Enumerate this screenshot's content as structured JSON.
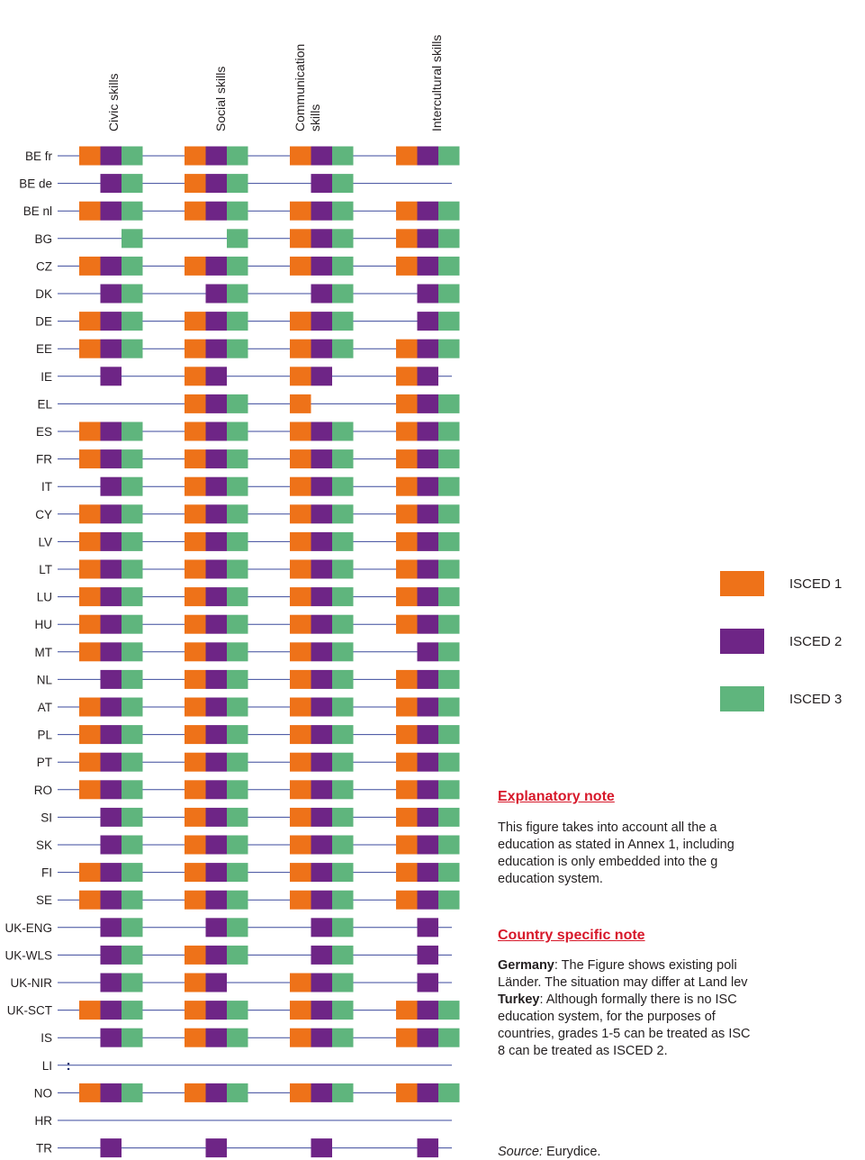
{
  "chart_data": {
    "type": "table",
    "categories": [
      "Civic skills",
      "Social skills",
      "Communication skills",
      "Intercultural skills"
    ],
    "column_headers": [
      [
        "Civic skills"
      ],
      [
        "Social skills"
      ],
      [
        "Communication",
        "skills"
      ],
      [
        "Intercultural skills"
      ]
    ],
    "series": [
      {
        "name": "ISCED 1",
        "color": "#ee7219"
      },
      {
        "name": "ISCED 2",
        "color": "#6e2586"
      },
      {
        "name": "ISCED 3",
        "color": "#5fb57d"
      }
    ],
    "missing_symbol": ":",
    "rows": [
      {
        "country": "BE fr",
        "values": [
          [
            1,
            2,
            3
          ],
          [
            1,
            2,
            3
          ],
          [
            1,
            2,
            3
          ],
          [
            1,
            2,
            3
          ]
        ]
      },
      {
        "country": "BE de",
        "values": [
          [
            2,
            3
          ],
          [
            1,
            2,
            3
          ],
          [
            2,
            3
          ],
          []
        ]
      },
      {
        "country": "BE nl",
        "values": [
          [
            1,
            2,
            3
          ],
          [
            1,
            2,
            3
          ],
          [
            1,
            2,
            3
          ],
          [
            1,
            2,
            3
          ]
        ]
      },
      {
        "country": "BG",
        "values": [
          [
            3
          ],
          [
            3
          ],
          [
            1,
            2,
            3
          ],
          [
            1,
            2,
            3
          ]
        ]
      },
      {
        "country": "CZ",
        "values": [
          [
            1,
            2,
            3
          ],
          [
            1,
            2,
            3
          ],
          [
            1,
            2,
            3
          ],
          [
            1,
            2,
            3
          ]
        ]
      },
      {
        "country": "DK",
        "values": [
          [
            2,
            3
          ],
          [
            2,
            3
          ],
          [
            2,
            3
          ],
          [
            2,
            3
          ]
        ]
      },
      {
        "country": "DE",
        "values": [
          [
            1,
            2,
            3
          ],
          [
            1,
            2,
            3
          ],
          [
            1,
            2,
            3
          ],
          [
            2,
            3
          ]
        ]
      },
      {
        "country": "EE",
        "values": [
          [
            1,
            2,
            3
          ],
          [
            1,
            2,
            3
          ],
          [
            1,
            2,
            3
          ],
          [
            1,
            2,
            3
          ]
        ]
      },
      {
        "country": "IE",
        "values": [
          [
            2
          ],
          [
            1,
            2
          ],
          [
            1,
            2
          ],
          [
            1,
            2
          ]
        ]
      },
      {
        "country": "EL",
        "values": [
          [],
          [
            1,
            2,
            3
          ],
          [
            1
          ],
          [
            1,
            2,
            3
          ]
        ]
      },
      {
        "country": "ES",
        "values": [
          [
            1,
            2,
            3
          ],
          [
            1,
            2,
            3
          ],
          [
            1,
            2,
            3
          ],
          [
            1,
            2,
            3
          ]
        ]
      },
      {
        "country": "FR",
        "values": [
          [
            1,
            2,
            3
          ],
          [
            1,
            2,
            3
          ],
          [
            1,
            2,
            3
          ],
          [
            1,
            2,
            3
          ]
        ]
      },
      {
        "country": "IT",
        "values": [
          [
            2,
            3
          ],
          [
            1,
            2,
            3
          ],
          [
            1,
            2,
            3
          ],
          [
            1,
            2,
            3
          ]
        ]
      },
      {
        "country": "CY",
        "values": [
          [
            1,
            2,
            3
          ],
          [
            1,
            2,
            3
          ],
          [
            1,
            2,
            3
          ],
          [
            1,
            2,
            3
          ]
        ]
      },
      {
        "country": "LV",
        "values": [
          [
            1,
            2,
            3
          ],
          [
            1,
            2,
            3
          ],
          [
            1,
            2,
            3
          ],
          [
            1,
            2,
            3
          ]
        ]
      },
      {
        "country": "LT",
        "values": [
          [
            1,
            2,
            3
          ],
          [
            1,
            2,
            3
          ],
          [
            1,
            2,
            3
          ],
          [
            1,
            2,
            3
          ]
        ]
      },
      {
        "country": "LU",
        "values": [
          [
            1,
            2,
            3
          ],
          [
            1,
            2,
            3
          ],
          [
            1,
            2,
            3
          ],
          [
            1,
            2,
            3
          ]
        ]
      },
      {
        "country": "HU",
        "values": [
          [
            1,
            2,
            3
          ],
          [
            1,
            2,
            3
          ],
          [
            1,
            2,
            3
          ],
          [
            1,
            2,
            3
          ]
        ]
      },
      {
        "country": "MT",
        "values": [
          [
            1,
            2,
            3
          ],
          [
            1,
            2,
            3
          ],
          [
            1,
            2,
            3
          ],
          [
            2,
            3
          ]
        ]
      },
      {
        "country": "NL",
        "values": [
          [
            2,
            3
          ],
          [
            1,
            2,
            3
          ],
          [
            1,
            2,
            3
          ],
          [
            1,
            2,
            3
          ]
        ]
      },
      {
        "country": "AT",
        "values": [
          [
            1,
            2,
            3
          ],
          [
            1,
            2,
            3
          ],
          [
            1,
            2,
            3
          ],
          [
            1,
            2,
            3
          ]
        ]
      },
      {
        "country": "PL",
        "values": [
          [
            1,
            2,
            3
          ],
          [
            1,
            2,
            3
          ],
          [
            1,
            2,
            3
          ],
          [
            1,
            2,
            3
          ]
        ]
      },
      {
        "country": "PT",
        "values": [
          [
            1,
            2,
            3
          ],
          [
            1,
            2,
            3
          ],
          [
            1,
            2,
            3
          ],
          [
            1,
            2,
            3
          ]
        ]
      },
      {
        "country": "RO",
        "values": [
          [
            1,
            2,
            3
          ],
          [
            1,
            2,
            3
          ],
          [
            1,
            2,
            3
          ],
          [
            1,
            2,
            3
          ]
        ]
      },
      {
        "country": "SI",
        "values": [
          [
            2,
            3
          ],
          [
            1,
            2,
            3
          ],
          [
            1,
            2,
            3
          ],
          [
            1,
            2,
            3
          ]
        ]
      },
      {
        "country": "SK",
        "values": [
          [
            2,
            3
          ],
          [
            1,
            2,
            3
          ],
          [
            1,
            2,
            3
          ],
          [
            1,
            2,
            3
          ]
        ]
      },
      {
        "country": "FI",
        "values": [
          [
            1,
            2,
            3
          ],
          [
            1,
            2,
            3
          ],
          [
            1,
            2,
            3
          ],
          [
            1,
            2,
            3
          ]
        ]
      },
      {
        "country": "SE",
        "values": [
          [
            1,
            2,
            3
          ],
          [
            1,
            2,
            3
          ],
          [
            1,
            2,
            3
          ],
          [
            1,
            2,
            3
          ]
        ]
      },
      {
        "country": "UK-ENG",
        "values": [
          [
            2,
            3
          ],
          [
            2,
            3
          ],
          [
            2,
            3
          ],
          [
            2
          ]
        ]
      },
      {
        "country": "UK-WLS",
        "values": [
          [
            2,
            3
          ],
          [
            1,
            2,
            3
          ],
          [
            2,
            3
          ],
          [
            2
          ]
        ]
      },
      {
        "country": "UK-NIR",
        "values": [
          [
            2,
            3
          ],
          [
            1,
            2
          ],
          [
            1,
            2,
            3
          ],
          [
            2
          ]
        ]
      },
      {
        "country": "UK-SCT",
        "values": [
          [
            1,
            2,
            3
          ],
          [
            1,
            2,
            3
          ],
          [
            1,
            2,
            3
          ],
          [
            1,
            2,
            3
          ]
        ]
      },
      {
        "country": "IS",
        "values": [
          [
            2,
            3
          ],
          [
            1,
            2,
            3
          ],
          [
            1,
            2,
            3
          ],
          [
            1,
            2,
            3
          ]
        ]
      },
      {
        "country": "LI",
        "values": [
          ":",
          ":",
          ":",
          ":"
        ]
      },
      {
        "country": "NO",
        "values": [
          [
            1,
            2,
            3
          ],
          [
            1,
            2,
            3
          ],
          [
            1,
            2,
            3
          ],
          [
            1,
            2,
            3
          ]
        ]
      },
      {
        "country": "HR",
        "values": [
          [],
          [],
          [],
          []
        ]
      },
      {
        "country": "TR",
        "values": [
          [
            2
          ],
          [
            2
          ],
          [
            2
          ],
          [
            2
          ]
        ]
      }
    ]
  },
  "legend": [
    {
      "label": "ISCED 1",
      "color": "#ee7219"
    },
    {
      "label": "ISCED 2",
      "color": "#6e2586"
    },
    {
      "label": "ISCED 3",
      "color": "#5fb57d"
    }
  ],
  "notes": {
    "explanatory_heading": "Explanatory note",
    "explanatory_lines": [
      "This figure takes into account all the a",
      "education as stated in Annex 1, including",
      "education is only embedded into the g",
      "education system."
    ],
    "country_heading": "Country specific note",
    "country_lines": [
      {
        "bold": "Germany",
        "text": ": The Figure shows existing poli"
      },
      {
        "bold": "",
        "text": "Länder. The situation may differ at Land lev"
      },
      {
        "bold": "Turkey",
        "text": ": Although formally there is no ISC"
      },
      {
        "bold": "",
        "text": "education system, for the purposes of"
      },
      {
        "bold": "",
        "text": "countries, grades 1-5 can be treated as ISC"
      },
      {
        "bold": "",
        "text": "8 can be treated as ISCED 2."
      }
    ],
    "source_label": "Source:",
    "source_text": " Eurydice."
  }
}
